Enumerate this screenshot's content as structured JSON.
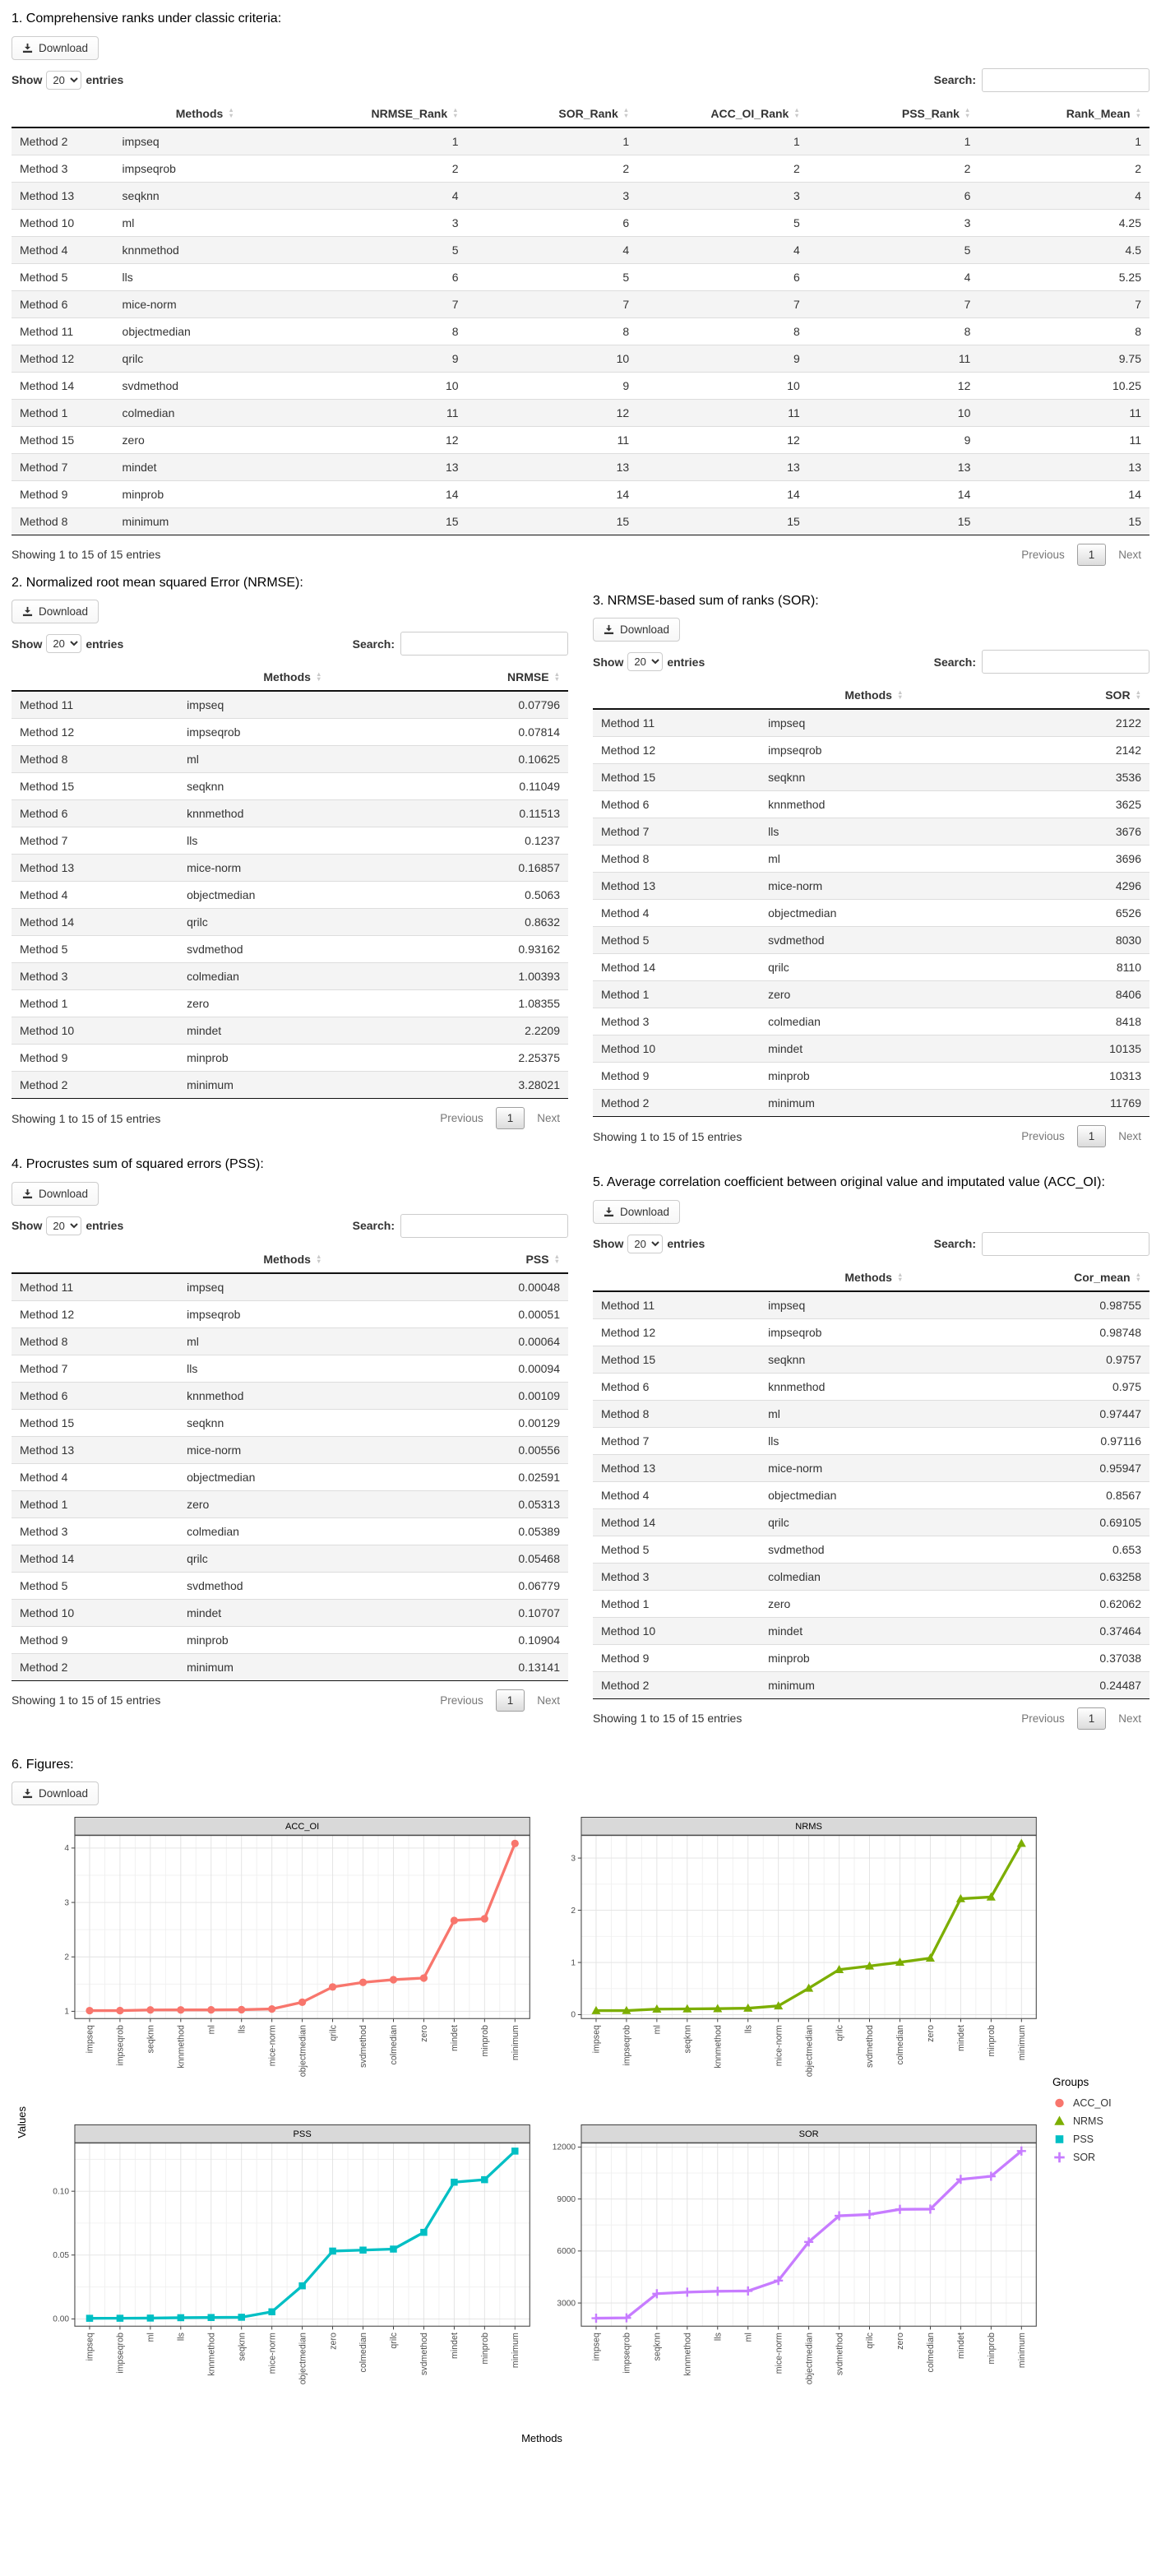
{
  "dt": {
    "download_label": "Download",
    "show_label": "Show",
    "entries_label": "entries",
    "page_length": "20",
    "search_label": "Search:",
    "info_text": "Showing 1 to 15 of 15 entries",
    "previous_label": "Previous",
    "current_page": "1",
    "next_label": "Next",
    "sort_asc_glyph": "▲",
    "sort_desc_glyph": "▼"
  },
  "sections": {
    "s1": {
      "title": "1. Comprehensive ranks under classic criteria:",
      "columns": [
        "",
        "Methods",
        "NRMSE_Rank",
        "SOR_Rank",
        "ACC_OI_Rank",
        "PSS_Rank",
        "Rank_Mean"
      ],
      "rows": [
        [
          "Method 2",
          "impseq",
          "1",
          "1",
          "1",
          "1",
          "1"
        ],
        [
          "Method 3",
          "impseqrob",
          "2",
          "2",
          "2",
          "2",
          "2"
        ],
        [
          "Method 13",
          "seqknn",
          "4",
          "3",
          "3",
          "6",
          "4"
        ],
        [
          "Method 10",
          "ml",
          "3",
          "6",
          "5",
          "3",
          "4.25"
        ],
        [
          "Method 4",
          "knnmethod",
          "5",
          "4",
          "4",
          "5",
          "4.5"
        ],
        [
          "Method 5",
          "lls",
          "6",
          "5",
          "6",
          "4",
          "5.25"
        ],
        [
          "Method 6",
          "mice-norm",
          "7",
          "7",
          "7",
          "7",
          "7"
        ],
        [
          "Method 11",
          "objectmedian",
          "8",
          "8",
          "8",
          "8",
          "8"
        ],
        [
          "Method 12",
          "qrilc",
          "9",
          "10",
          "9",
          "11",
          "9.75"
        ],
        [
          "Method 14",
          "svdmethod",
          "10",
          "9",
          "10",
          "12",
          "10.25"
        ],
        [
          "Method 1",
          "colmedian",
          "11",
          "12",
          "11",
          "10",
          "11"
        ],
        [
          "Method 15",
          "zero",
          "12",
          "11",
          "12",
          "9",
          "11"
        ],
        [
          "Method 7",
          "mindet",
          "13",
          "13",
          "13",
          "13",
          "13"
        ],
        [
          "Method 9",
          "minprob",
          "14",
          "14",
          "14",
          "14",
          "14"
        ],
        [
          "Method 8",
          "minimum",
          "15",
          "15",
          "15",
          "15",
          "15"
        ]
      ]
    },
    "s2": {
      "title": "2. Normalized root mean squared Error (NRMSE):",
      "columns": [
        "",
        "Methods",
        "NRMSE"
      ],
      "rows": [
        [
          "Method 11",
          "impseq",
          "0.07796"
        ],
        [
          "Method 12",
          "impseqrob",
          "0.07814"
        ],
        [
          "Method 8",
          "ml",
          "0.10625"
        ],
        [
          "Method 15",
          "seqknn",
          "0.11049"
        ],
        [
          "Method 6",
          "knnmethod",
          "0.11513"
        ],
        [
          "Method 7",
          "lls",
          "0.1237"
        ],
        [
          "Method 13",
          "mice-norm",
          "0.16857"
        ],
        [
          "Method 4",
          "objectmedian",
          "0.5063"
        ],
        [
          "Method 14",
          "qrilc",
          "0.8632"
        ],
        [
          "Method 5",
          "svdmethod",
          "0.93162"
        ],
        [
          "Method 3",
          "colmedian",
          "1.00393"
        ],
        [
          "Method 1",
          "zero",
          "1.08355"
        ],
        [
          "Method 10",
          "mindet",
          "2.2209"
        ],
        [
          "Method 9",
          "minprob",
          "2.25375"
        ],
        [
          "Method 2",
          "minimum",
          "3.28021"
        ]
      ]
    },
    "s3": {
      "title": "3. NRMSE-based sum of ranks (SOR):",
      "columns": [
        "",
        "Methods",
        "SOR"
      ],
      "rows": [
        [
          "Method 11",
          "impseq",
          "2122"
        ],
        [
          "Method 12",
          "impseqrob",
          "2142"
        ],
        [
          "Method 15",
          "seqknn",
          "3536"
        ],
        [
          "Method 6",
          "knnmethod",
          "3625"
        ],
        [
          "Method 7",
          "lls",
          "3676"
        ],
        [
          "Method 8",
          "ml",
          "3696"
        ],
        [
          "Method 13",
          "mice-norm",
          "4296"
        ],
        [
          "Method 4",
          "objectmedian",
          "6526"
        ],
        [
          "Method 5",
          "svdmethod",
          "8030"
        ],
        [
          "Method 14",
          "qrilc",
          "8110"
        ],
        [
          "Method 1",
          "zero",
          "8406"
        ],
        [
          "Method 3",
          "colmedian",
          "8418"
        ],
        [
          "Method 10",
          "mindet",
          "10135"
        ],
        [
          "Method 9",
          "minprob",
          "10313"
        ],
        [
          "Method 2",
          "minimum",
          "11769"
        ]
      ]
    },
    "s4": {
      "title": "4. Procrustes sum of squared errors (PSS):",
      "columns": [
        "",
        "Methods",
        "PSS"
      ],
      "rows": [
        [
          "Method 11",
          "impseq",
          "0.00048"
        ],
        [
          "Method 12",
          "impseqrob",
          "0.00051"
        ],
        [
          "Method 8",
          "ml",
          "0.00064"
        ],
        [
          "Method 7",
          "lls",
          "0.00094"
        ],
        [
          "Method 6",
          "knnmethod",
          "0.00109"
        ],
        [
          "Method 15",
          "seqknn",
          "0.00129"
        ],
        [
          "Method 13",
          "mice-norm",
          "0.00556"
        ],
        [
          "Method 4",
          "objectmedian",
          "0.02591"
        ],
        [
          "Method 1",
          "zero",
          "0.05313"
        ],
        [
          "Method 3",
          "colmedian",
          "0.05389"
        ],
        [
          "Method 14",
          "qrilc",
          "0.05468"
        ],
        [
          "Method 5",
          "svdmethod",
          "0.06779"
        ],
        [
          "Method 10",
          "mindet",
          "0.10707"
        ],
        [
          "Method 9",
          "minprob",
          "0.10904"
        ],
        [
          "Method 2",
          "minimum",
          "0.13141"
        ]
      ]
    },
    "s5": {
      "title": "5. Average correlation coefficient between original value and imputated value (ACC_OI):",
      "columns": [
        "",
        "Methods",
        "Cor_mean"
      ],
      "rows": [
        [
          "Method 11",
          "impseq",
          "0.98755"
        ],
        [
          "Method 12",
          "impseqrob",
          "0.98748"
        ],
        [
          "Method 15",
          "seqknn",
          "0.9757"
        ],
        [
          "Method 6",
          "knnmethod",
          "0.975"
        ],
        [
          "Method 8",
          "ml",
          "0.97447"
        ],
        [
          "Method 7",
          "lls",
          "0.97116"
        ],
        [
          "Method 13",
          "mice-norm",
          "0.95947"
        ],
        [
          "Method 4",
          "objectmedian",
          "0.8567"
        ],
        [
          "Method 14",
          "qrilc",
          "0.69105"
        ],
        [
          "Method 5",
          "svdmethod",
          "0.653"
        ],
        [
          "Method 3",
          "colmedian",
          "0.63258"
        ],
        [
          "Method 1",
          "zero",
          "0.62062"
        ],
        [
          "Method 10",
          "mindet",
          "0.37464"
        ],
        [
          "Method 9",
          "minprob",
          "0.37038"
        ],
        [
          "Method 2",
          "minimum",
          "0.24487"
        ]
      ]
    }
  },
  "figures": {
    "title": "6. Figures:",
    "ylabel": "Values",
    "xlabel": "Methods",
    "legend_title": "Groups",
    "legend": [
      {
        "name": "ACC_OI",
        "color": "#F8766D",
        "marker": "circle"
      },
      {
        "name": "NRMS",
        "color": "#7CAE00",
        "marker": "triangle"
      },
      {
        "name": "PSS",
        "color": "#00BFC4",
        "marker": "square"
      },
      {
        "name": "SOR",
        "color": "#C77CFF",
        "marker": "plus"
      }
    ]
  },
  "chart_data": [
    {
      "type": "line",
      "title": "ACC_OI",
      "color": "#F8766D",
      "marker": "circle",
      "categories": [
        "impseq",
        "impseqrob",
        "seqknn",
        "knnmethod",
        "ml",
        "lls",
        "mice-norm",
        "objectmedian",
        "qrilc",
        "svdmethod",
        "colmedian",
        "zero",
        "mindet",
        "minprob",
        "minimum"
      ],
      "values": [
        1.0126,
        1.0127,
        1.0249,
        1.0256,
        1.0262,
        1.0297,
        1.0422,
        1.1673,
        1.4471,
        1.5314,
        1.5808,
        1.6113,
        2.6692,
        2.6999,
        4.0838
      ],
      "yticks": [
        1,
        2,
        3,
        4
      ],
      "ytick_labels": [
        "1",
        "2",
        "3",
        "4"
      ],
      "ylim": [
        0.859,
        4.238
      ],
      "xlabel": "Methods",
      "ylabel": "Values",
      "grid": true
    },
    {
      "type": "line",
      "title": "NRMS",
      "color": "#7CAE00",
      "marker": "triangle",
      "categories": [
        "impseq",
        "impseqrob",
        "ml",
        "seqknn",
        "knnmethod",
        "lls",
        "mice-norm",
        "objectmedian",
        "qrilc",
        "svdmethod",
        "colmedian",
        "zero",
        "mindet",
        "minprob",
        "minimum"
      ],
      "values": [
        0.07796,
        0.07814,
        0.10625,
        0.11049,
        0.11513,
        0.1237,
        0.16857,
        0.5063,
        0.8632,
        0.93162,
        1.00393,
        1.08355,
        2.2209,
        2.25375,
        3.28021
      ],
      "yticks": [
        0,
        1,
        2,
        3
      ],
      "ytick_labels": [
        "0",
        "1",
        "2",
        "3"
      ],
      "ylim": [
        -0.082,
        3.44
      ],
      "xlabel": "Methods",
      "ylabel": "Values",
      "grid": true
    },
    {
      "type": "line",
      "title": "PSS",
      "color": "#00BFC4",
      "marker": "square",
      "categories": [
        "impseq",
        "impseqrob",
        "ml",
        "lls",
        "knnmethod",
        "seqknn",
        "mice-norm",
        "objectmedian",
        "zero",
        "colmedian",
        "qrilc",
        "svdmethod",
        "mindet",
        "minprob",
        "minimum"
      ],
      "values": [
        0.00048,
        0.00051,
        0.00064,
        0.00094,
        0.00109,
        0.00129,
        0.00556,
        0.02591,
        0.05313,
        0.05389,
        0.05468,
        0.06779,
        0.10707,
        0.10904,
        0.13141
      ],
      "yticks": [
        0,
        0.05,
        0.1
      ],
      "ytick_labels": [
        "0.00",
        "0.05",
        "0.10"
      ],
      "ylim": [
        -0.006,
        0.138
      ],
      "xlabel": "Methods",
      "ylabel": "Values",
      "grid": true
    },
    {
      "type": "line",
      "title": "SOR",
      "color": "#C77CFF",
      "marker": "plus",
      "categories": [
        "impseq",
        "impseqrob",
        "seqknn",
        "knnmethod",
        "lls",
        "ml",
        "mice-norm",
        "objectmedian",
        "svdmethod",
        "qrilc",
        "zero",
        "colmedian",
        "mindet",
        "minprob",
        "minimum"
      ],
      "values": [
        2122,
        2142,
        3536,
        3625,
        3676,
        3696,
        4296,
        6526,
        8030,
        8110,
        8406,
        8418,
        10135,
        10313,
        11769
      ],
      "yticks": [
        3000,
        6000,
        9000,
        12000
      ],
      "ytick_labels": [
        "3000",
        "6000",
        "9000",
        "12000"
      ],
      "ylim": [
        1640,
        12251
      ],
      "xlabel": "Methods",
      "ylabel": "Values",
      "grid": true
    }
  ]
}
